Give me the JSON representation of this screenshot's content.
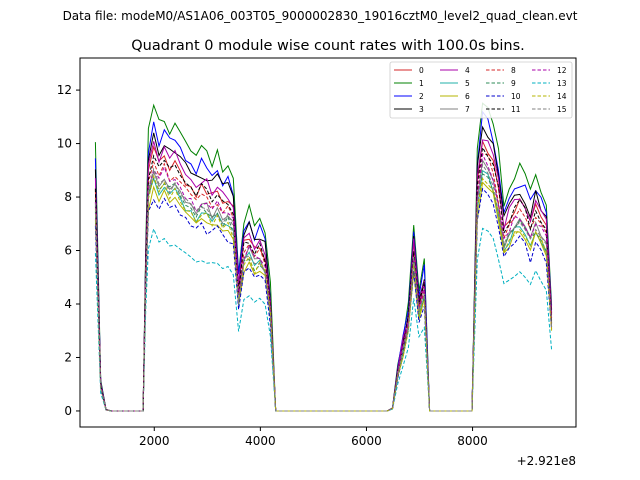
{
  "chart_data": {
    "type": "line",
    "suptitle": "Data file: modeM0/AS1A06_003T05_9000002830_19016cztM0_level2_quad_clean.evt",
    "title": "Quadrant 0 module wise count rates with 100.0s bins.",
    "xlabel": "",
    "ylabel": "",
    "offset_label": "+2.921e8",
    "xlim": [
      600,
      9950
    ],
    "ylim": [
      -0.6,
      13.2
    ],
    "xticks": [
      2000,
      4000,
      6000,
      8000
    ],
    "yticks": [
      0,
      2,
      4,
      6,
      8,
      10,
      12
    ],
    "grid": false,
    "legend_placement": "top-right",
    "x": [
      890,
      990,
      1090,
      1190,
      1290,
      1390,
      1490,
      1590,
      1690,
      1790,
      1840,
      1890,
      1990,
      2090,
      2190,
      2290,
      2390,
      2490,
      2590,
      2690,
      2790,
      2890,
      2990,
      3090,
      3190,
      3290,
      3390,
      3490,
      3590,
      3690,
      3790,
      3890,
      3990,
      4090,
      4190,
      4290,
      4390,
      4490,
      4590,
      4690,
      4790,
      4890,
      4990,
      5090,
      5190,
      5290,
      5390,
      5490,
      5590,
      5690,
      5790,
      5890,
      5990,
      6090,
      6190,
      6290,
      6390,
      6490,
      6590,
      6690,
      6790,
      6890,
      6990,
      7090,
      7190,
      7290,
      7390,
      7490,
      7590,
      7690,
      7790,
      7890,
      7990,
      8090,
      8190,
      8290,
      8390,
      8490,
      8590,
      8690,
      8790,
      8890,
      8990,
      9090,
      9190,
      9290,
      9390,
      9490
    ],
    "base_profile": [
      0.85,
      0.1,
      0.005,
      0,
      0,
      0,
      0,
      0,
      0,
      0,
      0.55,
      0.89,
      0.98,
      0.92,
      0.95,
      0.91,
      0.93,
      0.88,
      0.86,
      0.85,
      0.81,
      0.84,
      0.83,
      0.8,
      0.82,
      0.78,
      0.79,
      0.75,
      0.45,
      0.62,
      0.65,
      0.6,
      0.62,
      0.58,
      0.4,
      0,
      0,
      0,
      0,
      0,
      0,
      0,
      0,
      0,
      0,
      0,
      0,
      0,
      0,
      0,
      0,
      0,
      0,
      0,
      0,
      0,
      0,
      0.01,
      0.15,
      0.25,
      0.35,
      0.62,
      0.4,
      0.48,
      0,
      0,
      0,
      0,
      0,
      0,
      0,
      0,
      0,
      0.85,
      1.0,
      0.98,
      0.93,
      0.83,
      0.68,
      0.72,
      0.76,
      0.78,
      0.75,
      0.7,
      0.76,
      0.72,
      0.68,
      0.35
    ],
    "series": [
      {
        "name": "0",
        "color": "#d62728",
        "dash": "solid",
        "scale": 10.0,
        "jitter": 0.2
      },
      {
        "name": "1",
        "color": "#008000",
        "dash": "solid",
        "scale": 11.6,
        "jitter": 0.22
      },
      {
        "name": "2",
        "color": "#0000ff",
        "dash": "solid",
        "scale": 11.0,
        "jitter": 0.2
      },
      {
        "name": "3",
        "color": "#000000",
        "dash": "solid",
        "scale": 10.6,
        "jitter": 0.22
      },
      {
        "name": "4",
        "color": "#aa00aa",
        "dash": "solid",
        "scale": 10.3,
        "jitter": 0.22
      },
      {
        "name": "5",
        "color": "#20b2aa",
        "dash": "solid",
        "scale": 8.9,
        "jitter": 0.2
      },
      {
        "name": "6",
        "color": "#b5b500",
        "dash": "solid",
        "scale": 8.6,
        "jitter": 0.2
      },
      {
        "name": "7",
        "color": "#808080",
        "dash": "solid",
        "scale": 9.2,
        "jitter": 0.2
      },
      {
        "name": "8",
        "color": "#d62728",
        "dash": "dashed",
        "scale": 9.6,
        "jitter": 0.2
      },
      {
        "name": "9",
        "color": "#2e8b57",
        "dash": "dashed",
        "scale": 9.0,
        "jitter": 0.22
      },
      {
        "name": "10",
        "color": "#0000cd",
        "dash": "dashed",
        "scale": 8.2,
        "jitter": 0.25
      },
      {
        "name": "11",
        "color": "#000000",
        "dash": "dashed",
        "scale": 9.9,
        "jitter": 0.2
      },
      {
        "name": "12",
        "color": "#aa00aa",
        "dash": "dashed",
        "scale": 9.4,
        "jitter": 0.22
      },
      {
        "name": "13",
        "color": "#00b0c0",
        "dash": "dashed",
        "scale": 6.8,
        "jitter": 0.22
      },
      {
        "name": "14",
        "color": "#b5b500",
        "dash": "dashed",
        "scale": 8.8,
        "jitter": 0.2
      },
      {
        "name": "15",
        "color": "#808080",
        "dash": "dashed",
        "scale": 9.1,
        "jitter": 0.2
      }
    ]
  }
}
